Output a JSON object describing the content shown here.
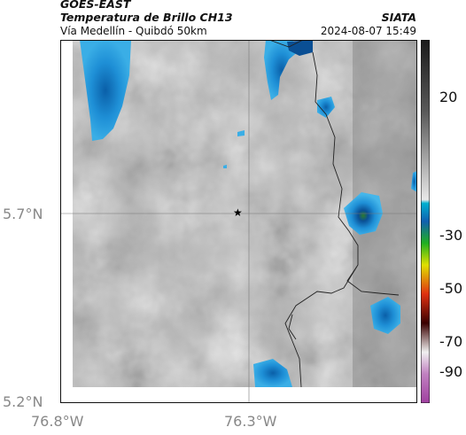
{
  "header": {
    "title_line1": "GOES-EAST",
    "title_line2": "Temperatura de Brillo CH13",
    "subtitle": "Vía Medellín - Quibdó 50km",
    "organization": "SIATA",
    "datetime": "2024-08-07 15:49"
  },
  "map": {
    "x_ticks": [
      "76.8°W",
      "76.3°W"
    ],
    "y_ticks": [
      "5.7°N",
      "5.2°N"
    ],
    "marker": "star",
    "colors": {
      "background_gray": "#b8b8b8",
      "cold_cloud": "#1e8fd6",
      "border_line": "#222222"
    }
  },
  "colorbar": {
    "ticks": [
      "20",
      "-30",
      "-50",
      "-70",
      "-90"
    ]
  }
}
